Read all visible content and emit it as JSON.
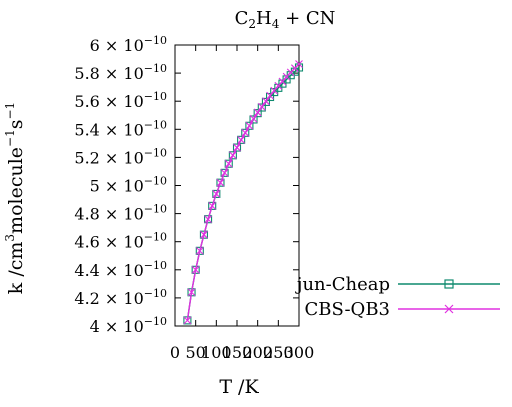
{
  "chart_data": {
    "type": "line",
    "title": "C2H4 + CN",
    "title_parts": {
      "c": "C",
      "sub1": "2",
      "h": "H",
      "sub2": "4",
      "rest": " + CN"
    },
    "xlabel": "T /K",
    "ylabel": "k /cm3molecule-1s-1",
    "ylabel_parts": {
      "pre": "k /cm",
      "sup1": "3",
      "mid": "molecule",
      "sup2": "−1",
      "s": "s",
      "sup3": "−1"
    },
    "xlim": [
      0,
      300
    ],
    "ylim": [
      4e-10,
      6e-10
    ],
    "x_ticks": [
      0,
      50,
      100,
      150,
      200,
      250,
      300
    ],
    "x_tick_labels": [
      "0",
      "50",
      "100",
      "150",
      "200",
      "250",
      "300"
    ],
    "y_ticks": [
      4e-10,
      4.2e-10,
      4.4e-10,
      4.6e-10,
      4.8e-10,
      5e-10,
      5.2e-10,
      5.4e-10,
      5.6e-10,
      5.8e-10,
      6e-10
    ],
    "y_tick_mantissas": [
      "4",
      "4.2",
      "4.4",
      "4.6",
      "4.8",
      "5",
      "5.2",
      "5.4",
      "5.6",
      "5.8",
      "6"
    ],
    "y_tick_multiplier": "× 10",
    "y_tick_exponent": "−10",
    "legend_position": "bottom-right",
    "grid": false,
    "x": [
      30,
      40,
      50,
      60,
      70,
      80,
      90,
      100,
      110,
      120,
      130,
      140,
      150,
      160,
      170,
      180,
      190,
      200,
      210,
      220,
      230,
      240,
      250,
      260,
      270,
      280,
      290,
      300
    ],
    "series": [
      {
        "name": "jun-Cheap",
        "color": "#0e8a6e",
        "marker": "square",
        "values": [
          4.04e-10,
          4.24e-10,
          4.4e-10,
          4.535e-10,
          4.65e-10,
          4.76e-10,
          4.855e-10,
          4.94e-10,
          5.02e-10,
          5.09e-10,
          5.155e-10,
          5.215e-10,
          5.27e-10,
          5.325e-10,
          5.375e-10,
          5.425e-10,
          5.47e-10,
          5.515e-10,
          5.555e-10,
          5.595e-10,
          5.63e-10,
          5.665e-10,
          5.695e-10,
          5.725e-10,
          5.755e-10,
          5.785e-10,
          5.81e-10,
          5.84e-10
        ]
      },
      {
        "name": "CBS-QB3",
        "color": "#e031e0",
        "marker": "cross",
        "values": [
          4.04e-10,
          4.24e-10,
          4.4e-10,
          4.535e-10,
          4.65e-10,
          4.76e-10,
          4.855e-10,
          4.94e-10,
          5.02e-10,
          5.09e-10,
          5.155e-10,
          5.215e-10,
          5.27e-10,
          5.325e-10,
          5.375e-10,
          5.425e-10,
          5.475e-10,
          5.52e-10,
          5.56e-10,
          5.6e-10,
          5.64e-10,
          5.675e-10,
          5.71e-10,
          5.74e-10,
          5.775e-10,
          5.805e-10,
          5.835e-10,
          5.865e-10
        ]
      }
    ]
  }
}
